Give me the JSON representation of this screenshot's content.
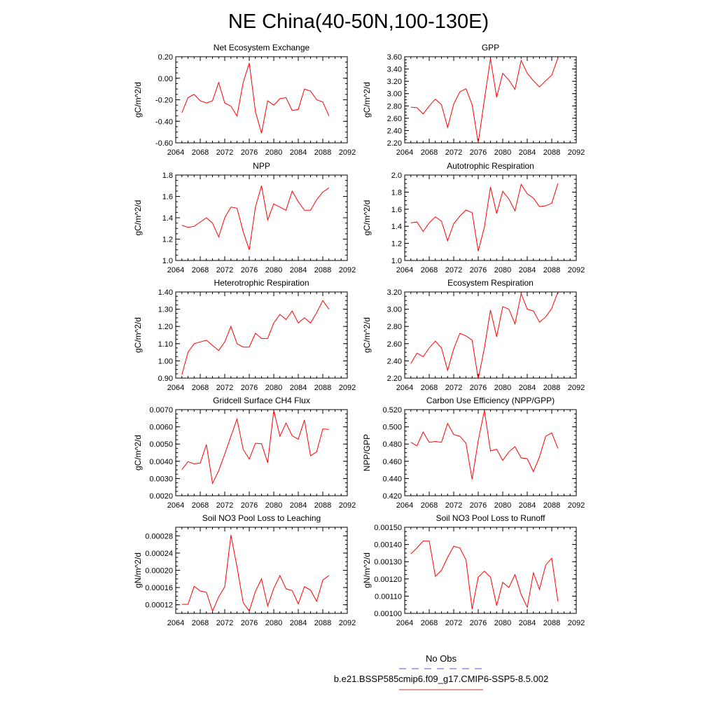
{
  "figure": {
    "title": "NE China(40-50N,100-130E)",
    "legend": {
      "obs_label": "No Obs",
      "model_label": "b.e21.BSSP585cmip6.f09_g17.CMIP6-SSP5-8.5.002",
      "obs_color": "#5555cc",
      "model_color": "#cc3333"
    },
    "line_color": "#ff0000"
  },
  "chart_data": [
    {
      "type": "line",
      "title": "Net Ecosystem Exchange",
      "ylabel": "gC/m^2/d",
      "xlim": [
        2064,
        2092
      ],
      "xticks": [
        2064,
        2068,
        2072,
        2076,
        2080,
        2084,
        2088,
        2092
      ],
      "ylim": [
        -0.6,
        0.2
      ],
      "yticks": [
        "-0.60",
        "-0.40",
        "-0.20",
        "0.00",
        "0.20"
      ],
      "x": [
        2065,
        2066,
        2067,
        2068,
        2069,
        2070,
        2071,
        2072,
        2073,
        2074,
        2075,
        2076,
        2077,
        2078,
        2079,
        2080,
        2081,
        2082,
        2083,
        2084,
        2085,
        2086,
        2087,
        2088,
        2089
      ],
      "values": [
        -0.32,
        -0.18,
        -0.15,
        -0.21,
        -0.23,
        -0.21,
        -0.04,
        -0.23,
        -0.26,
        -0.35,
        -0.04,
        0.14,
        -0.31,
        -0.51,
        -0.21,
        -0.25,
        -0.19,
        -0.18,
        -0.3,
        -0.29,
        -0.1,
        -0.12,
        -0.2,
        -0.22,
        -0.35
      ]
    },
    {
      "type": "line",
      "title": "GPP",
      "ylabel": "gC/m^2/d",
      "xlim": [
        2064,
        2092
      ],
      "xticks": [
        2064,
        2068,
        2072,
        2076,
        2080,
        2084,
        2088,
        2092
      ],
      "ylim": [
        2.2,
        3.6
      ],
      "yticks": [
        "2.20",
        "2.40",
        "2.60",
        "2.80",
        "3.00",
        "3.20",
        "3.40",
        "3.60"
      ],
      "x": [
        2065,
        2066,
        2067,
        2068,
        2069,
        2070,
        2071,
        2072,
        2073,
        2074,
        2075,
        2076,
        2077,
        2078,
        2079,
        2080,
        2081,
        2082,
        2083,
        2084,
        2085,
        2086,
        2087,
        2088,
        2089
      ],
      "values": [
        2.78,
        2.77,
        2.67,
        2.8,
        2.91,
        2.82,
        2.45,
        2.83,
        3.03,
        3.08,
        2.82,
        2.2,
        2.9,
        3.57,
        2.94,
        3.33,
        3.22,
        3.07,
        3.54,
        3.33,
        3.21,
        3.11,
        3.21,
        3.3,
        3.58
      ]
    },
    {
      "type": "line",
      "title": "NPP",
      "ylabel": "gC/m^2/d",
      "xlim": [
        2064,
        2092
      ],
      "xticks": [
        2064,
        2068,
        2072,
        2076,
        2080,
        2084,
        2088,
        2092
      ],
      "ylim": [
        1.0,
        1.8
      ],
      "yticks": [
        "1.0",
        "1.2",
        "1.4",
        "1.6",
        "1.8"
      ],
      "x": [
        2065,
        2066,
        2067,
        2068,
        2069,
        2070,
        2071,
        2072,
        2073,
        2074,
        2075,
        2076,
        2077,
        2078,
        2079,
        2080,
        2081,
        2082,
        2083,
        2084,
        2085,
        2086,
        2087,
        2088,
        2089
      ],
      "values": [
        1.33,
        1.31,
        1.32,
        1.36,
        1.4,
        1.35,
        1.22,
        1.4,
        1.5,
        1.49,
        1.27,
        1.1,
        1.5,
        1.7,
        1.38,
        1.53,
        1.5,
        1.47,
        1.65,
        1.55,
        1.47,
        1.47,
        1.57,
        1.64,
        1.68
      ]
    },
    {
      "type": "line",
      "title": "Autotrophic Respiration",
      "ylabel": "gC/m^2/d",
      "xlim": [
        2064,
        2092
      ],
      "xticks": [
        2064,
        2068,
        2072,
        2076,
        2080,
        2084,
        2088,
        2092
      ],
      "ylim": [
        1.0,
        2.0
      ],
      "yticks": [
        "1.0",
        "1.2",
        "1.4",
        "1.6",
        "1.8",
        "2.0"
      ],
      "x": [
        2065,
        2066,
        2067,
        2068,
        2069,
        2070,
        2071,
        2072,
        2073,
        2074,
        2075,
        2076,
        2077,
        2078,
        2079,
        2080,
        2081,
        2082,
        2083,
        2084,
        2085,
        2086,
        2087,
        2088,
        2089
      ],
      "values": [
        1.44,
        1.45,
        1.34,
        1.44,
        1.51,
        1.46,
        1.23,
        1.43,
        1.52,
        1.59,
        1.56,
        1.11,
        1.39,
        1.86,
        1.55,
        1.81,
        1.72,
        1.58,
        1.89,
        1.78,
        1.73,
        1.63,
        1.64,
        1.67,
        1.9
      ]
    },
    {
      "type": "line",
      "title": "Heterotrophic Respiration",
      "ylabel": "gC/m^2/d",
      "xlim": [
        2064,
        2092
      ],
      "xticks": [
        2064,
        2068,
        2072,
        2076,
        2080,
        2084,
        2088,
        2092
      ],
      "ylim": [
        0.9,
        1.4
      ],
      "yticks": [
        "0.90",
        "1.00",
        "1.10",
        "1.20",
        "1.30",
        "1.40"
      ],
      "x": [
        2065,
        2066,
        2067,
        2068,
        2069,
        2070,
        2071,
        2072,
        2073,
        2074,
        2075,
        2076,
        2077,
        2078,
        2079,
        2080,
        2081,
        2082,
        2083,
        2084,
        2085,
        2086,
        2087,
        2088,
        2089
      ],
      "values": [
        0.92,
        1.05,
        1.1,
        1.11,
        1.12,
        1.09,
        1.06,
        1.11,
        1.2,
        1.1,
        1.08,
        1.08,
        1.16,
        1.13,
        1.13,
        1.22,
        1.27,
        1.24,
        1.29,
        1.22,
        1.25,
        1.22,
        1.28,
        1.35,
        1.3
      ]
    },
    {
      "type": "line",
      "title": "Ecosystem Respiration",
      "ylabel": "gC/m^2/d",
      "xlim": [
        2064,
        2092
      ],
      "xticks": [
        2064,
        2068,
        2072,
        2076,
        2080,
        2084,
        2088,
        2092
      ],
      "ylim": [
        2.2,
        3.2
      ],
      "yticks": [
        "2.20",
        "2.40",
        "2.60",
        "2.80",
        "3.00",
        "3.20"
      ],
      "x": [
        2065,
        2066,
        2067,
        2068,
        2069,
        2070,
        2071,
        2072,
        2073,
        2074,
        2075,
        2076,
        2077,
        2078,
        2079,
        2080,
        2081,
        2082,
        2083,
        2084,
        2085,
        2086,
        2087,
        2088,
        2089
      ],
      "values": [
        2.37,
        2.49,
        2.45,
        2.55,
        2.63,
        2.55,
        2.29,
        2.54,
        2.72,
        2.69,
        2.64,
        2.19,
        2.55,
        2.99,
        2.68,
        3.03,
        3.0,
        2.83,
        3.18,
        3.0,
        2.98,
        2.85,
        2.91,
        3.01,
        3.2
      ]
    },
    {
      "type": "line",
      "title": "Gridcell Surface CH4 Flux",
      "ylabel": "gC/m^2/d",
      "xlim": [
        2064,
        2092
      ],
      "xticks": [
        2064,
        2068,
        2072,
        2076,
        2080,
        2084,
        2088,
        2092
      ],
      "ylim": [
        0.002,
        0.007
      ],
      "yticks": [
        "0.0020",
        "0.0030",
        "0.0040",
        "0.0050",
        "0.0060",
        "0.0070"
      ],
      "x": [
        2065,
        2066,
        2067,
        2068,
        2069,
        2070,
        2071,
        2072,
        2073,
        2074,
        2075,
        2076,
        2077,
        2078,
        2079,
        2080,
        2081,
        2082,
        2083,
        2084,
        2085,
        2086,
        2087,
        2088,
        2089
      ],
      "values": [
        0.00352,
        0.00398,
        0.00385,
        0.0039,
        0.00497,
        0.00272,
        0.00345,
        0.00442,
        0.00545,
        0.00645,
        0.0047,
        0.00412,
        0.00505,
        0.00502,
        0.00392,
        0.00695,
        0.00545,
        0.00622,
        0.00548,
        0.00528,
        0.0064,
        0.00432,
        0.00455,
        0.00588,
        0.00585
      ]
    },
    {
      "type": "line",
      "title": "Carbon Use Efficiency (NPP/GPP)",
      "ylabel": "NPP/GPP",
      "xlim": [
        2064,
        2092
      ],
      "xticks": [
        2064,
        2068,
        2072,
        2076,
        2080,
        2084,
        2088,
        2092
      ],
      "ylim": [
        0.42,
        0.52
      ],
      "yticks": [
        "0.420",
        "0.440",
        "0.460",
        "0.480",
        "0.500",
        "0.520"
      ],
      "x": [
        2065,
        2066,
        2067,
        2068,
        2069,
        2070,
        2071,
        2072,
        2073,
        2074,
        2075,
        2076,
        2077,
        2078,
        2079,
        2080,
        2081,
        2082,
        2083,
        2084,
        2085,
        2086,
        2087,
        2088,
        2089
      ],
      "values": [
        0.482,
        0.478,
        0.494,
        0.482,
        0.483,
        0.482,
        0.504,
        0.491,
        0.489,
        0.481,
        0.439,
        0.484,
        0.519,
        0.472,
        0.474,
        0.461,
        0.471,
        0.477,
        0.464,
        0.463,
        0.448,
        0.465,
        0.489,
        0.493,
        0.475
      ]
    },
    {
      "type": "line",
      "title": "Soil NO3 Pool Loss to Leaching",
      "ylabel": "gN/m^2/d",
      "xlim": [
        2064,
        2092
      ],
      "xticks": [
        2064,
        2068,
        2072,
        2076,
        2080,
        2084,
        2088,
        2092
      ],
      "ylim": [
        0.0001,
        0.0003
      ],
      "yticks": [
        "0.00012",
        "0.00016",
        "0.00020",
        "0.00024",
        "0.00028"
      ],
      "ytick_values": [
        0.00012,
        0.00016,
        0.0002,
        0.00024,
        0.00028
      ],
      "x": [
        2065,
        2066,
        2067,
        2068,
        2069,
        2070,
        2071,
        2072,
        2073,
        2074,
        2075,
        2076,
        2077,
        2078,
        2079,
        2080,
        2081,
        2082,
        2083,
        2084,
        2085,
        2086,
        2087,
        2088,
        2089
      ],
      "values": [
        0.000121,
        0.000121,
        0.000163,
        0.000152,
        0.000149,
        0.000105,
        0.000138,
        0.000162,
        0.000282,
        0.000208,
        0.000125,
        0.000105,
        0.000151,
        0.00018,
        0.000117,
        0.000158,
        0.000188,
        0.000157,
        0.000153,
        0.000122,
        0.000162,
        0.000154,
        0.000128,
        0.000177,
        0.000188
      ]
    },
    {
      "type": "line",
      "title": "Soil NO3 Pool Loss to Runoff",
      "ylabel": "gN/m^2/d",
      "xlim": [
        2064,
        2092
      ],
      "xticks": [
        2064,
        2068,
        2072,
        2076,
        2080,
        2084,
        2088,
        2092
      ],
      "ylim": [
        0.001,
        0.0015
      ],
      "yticks": [
        "0.00100",
        "0.00110",
        "0.00120",
        "0.00130",
        "0.00140",
        "0.00150"
      ],
      "x": [
        2065,
        2066,
        2067,
        2068,
        2069,
        2070,
        2071,
        2072,
        2073,
        2074,
        2075,
        2076,
        2077,
        2078,
        2079,
        2080,
        2081,
        2082,
        2083,
        2084,
        2085,
        2086,
        2087,
        2088,
        2089
      ],
      "values": [
        0.001345,
        0.00138,
        0.00142,
        0.00142,
        0.001215,
        0.00125,
        0.001325,
        0.00139,
        0.00138,
        0.00131,
        0.001025,
        0.00121,
        0.001245,
        0.00121,
        0.001045,
        0.00118,
        0.00115,
        0.001225,
        0.00111,
        0.001035,
        0.001235,
        0.00114,
        0.00128,
        0.00132,
        0.00107
      ]
    }
  ]
}
